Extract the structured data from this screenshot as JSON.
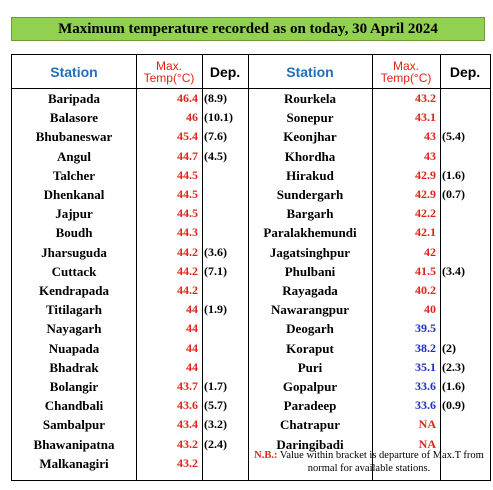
{
  "title": "Maximum temperature recorded as on today, 30 April 2024",
  "headers": {
    "station": "Station",
    "max_temp_line1": "Max.",
    "max_temp_line2": "Temp(°C)",
    "dep": "Dep."
  },
  "colors": {
    "red": "#e0241b",
    "blue": "#1f2fbf",
    "header_blue": "#1f6fc0",
    "title_bg": "#92d050"
  },
  "left": [
    {
      "station": "Baripada",
      "temp": "46.4",
      "dep": "(8.9)",
      "color": "red"
    },
    {
      "station": "Balasore",
      "temp": "46",
      "dep": "(10.1)",
      "color": "red"
    },
    {
      "station": "Bhubaneswar",
      "temp": "45.4",
      "dep": "(7.6)",
      "color": "red"
    },
    {
      "station": "Angul",
      "temp": "44.7",
      "dep": "(4.5)",
      "color": "red"
    },
    {
      "station": "Talcher",
      "temp": "44.5",
      "dep": "",
      "color": "red"
    },
    {
      "station": "Dhenkanal",
      "temp": "44.5",
      "dep": "",
      "color": "red"
    },
    {
      "station": "Jajpur",
      "temp": "44.5",
      "dep": "",
      "color": "red"
    },
    {
      "station": "Boudh",
      "temp": "44.3",
      "dep": "",
      "color": "red"
    },
    {
      "station": "Jharsuguda",
      "temp": "44.2",
      "dep": "(3.6)",
      "color": "red"
    },
    {
      "station": "Cuttack",
      "temp": "44.2",
      "dep": "(7.1)",
      "color": "red"
    },
    {
      "station": "Kendrapada",
      "temp": "44.2",
      "dep": "",
      "color": "red"
    },
    {
      "station": "Titilagarh",
      "temp": "44",
      "dep": "(1.9)",
      "color": "red"
    },
    {
      "station": "Nayagarh",
      "temp": "44",
      "dep": "",
      "color": "red"
    },
    {
      "station": "Nuapada",
      "temp": "44",
      "dep": "",
      "color": "red"
    },
    {
      "station": "Bhadrak",
      "temp": "44",
      "dep": "",
      "color": "red"
    },
    {
      "station": "Bolangir",
      "temp": "43.7",
      "dep": "(1.7)",
      "color": "red"
    },
    {
      "station": "Chandbali",
      "temp": "43.6",
      "dep": "(5.7)",
      "color": "red"
    },
    {
      "station": "Sambalpur",
      "temp": "43.4",
      "dep": "(3.2)",
      "color": "red"
    },
    {
      "station": "Bhawanipatna",
      "temp": "43.2",
      "dep": "(2.4)",
      "color": "red"
    },
    {
      "station": "Malkanagiri",
      "temp": "43.2",
      "dep": "",
      "color": "red"
    }
  ],
  "right": [
    {
      "station": "Rourkela",
      "temp": "43.2",
      "dep": "",
      "color": "red"
    },
    {
      "station": "Sonepur",
      "temp": "43.1",
      "dep": "",
      "color": "red"
    },
    {
      "station": "Keonjhar",
      "temp": "43",
      "dep": "(5.4)",
      "color": "red"
    },
    {
      "station": "Khordha",
      "temp": "43",
      "dep": "",
      "color": "red"
    },
    {
      "station": "Hirakud",
      "temp": "42.9",
      "dep": "(1.6)",
      "color": "red"
    },
    {
      "station": "Sundergarh",
      "temp": "42.9",
      "dep": "(0.7)",
      "color": "red"
    },
    {
      "station": "Bargarh",
      "temp": "42.2",
      "dep": "",
      "color": "red"
    },
    {
      "station": "Paralakhemundi",
      "temp": "42.1",
      "dep": "",
      "color": "red"
    },
    {
      "station": "Jagatsinghpur",
      "temp": "42",
      "dep": "",
      "color": "red"
    },
    {
      "station": "Phulbani",
      "temp": "41.5",
      "dep": "(3.4)",
      "color": "red"
    },
    {
      "station": "Rayagada",
      "temp": "40.2",
      "dep": "",
      "color": "red"
    },
    {
      "station": "Nawarangpur",
      "temp": "40",
      "dep": "",
      "color": "red"
    },
    {
      "station": "Deogarh",
      "temp": "39.5",
      "dep": "",
      "color": "blue"
    },
    {
      "station": "Koraput",
      "temp": "38.2",
      "dep": "(2)",
      "color": "blue"
    },
    {
      "station": "Puri",
      "temp": "35.1",
      "dep": "(2.3)",
      "color": "blue"
    },
    {
      "station": "Gopalpur",
      "temp": "33.6",
      "dep": "(1.6)",
      "color": "blue"
    },
    {
      "station": "Paradeep",
      "temp": "33.6",
      "dep": "(0.9)",
      "color": "blue"
    },
    {
      "station": "Chatrapur",
      "temp": "NA",
      "dep": "",
      "color": "red"
    },
    {
      "station": "Daringibadi",
      "temp": "NA",
      "dep": "",
      "color": "red"
    }
  ],
  "note": {
    "label": "N.B.:",
    "text": "Value within bracket is departure of Max.T from normal for available stations."
  }
}
